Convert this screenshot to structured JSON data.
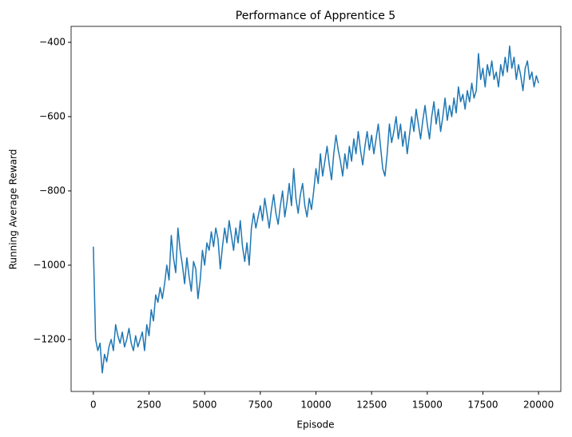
{
  "chart_data": {
    "type": "line",
    "title": "Performance of Apprentice 5",
    "x_label": "Episode",
    "y_label": "Running Average Reward",
    "color": "#1f77b4",
    "x": [
      0,
      100,
      200,
      300,
      400,
      500,
      600,
      700,
      800,
      900,
      1000,
      1100,
      1200,
      1300,
      1400,
      1500,
      1600,
      1700,
      1800,
      1900,
      2000,
      2100,
      2200,
      2300,
      2400,
      2500,
      2600,
      2700,
      2800,
      2900,
      3000,
      3100,
      3200,
      3300,
      3400,
      3500,
      3600,
      3700,
      3800,
      3900,
      4000,
      4100,
      4200,
      4300,
      4400,
      4500,
      4600,
      4700,
      4800,
      4900,
      5000,
      5100,
      5200,
      5300,
      5400,
      5500,
      5600,
      5700,
      5800,
      5900,
      6000,
      6100,
      6200,
      6300,
      6400,
      6500,
      6600,
      6700,
      6800,
      6900,
      7000,
      7100,
      7200,
      7300,
      7400,
      7500,
      7600,
      7700,
      7800,
      7900,
      8000,
      8100,
      8200,
      8300,
      8400,
      8500,
      8600,
      8700,
      8800,
      8900,
      9000,
      9100,
      9200,
      9300,
      9400,
      9500,
      9600,
      9700,
      9800,
      9900,
      10000,
      10100,
      10200,
      10300,
      10400,
      10500,
      10600,
      10700,
      10800,
      10900,
      11000,
      11100,
      11200,
      11300,
      11400,
      11500,
      11600,
      11700,
      11800,
      11900,
      12000,
      12100,
      12200,
      12300,
      12400,
      12500,
      12600,
      12700,
      12800,
      12900,
      13000,
      13100,
      13200,
      13300,
      13400,
      13500,
      13600,
      13700,
      13800,
      13900,
      14000,
      14100,
      14200,
      14300,
      14400,
      14500,
      14600,
      14700,
      14800,
      14900,
      15000,
      15100,
      15200,
      15300,
      15400,
      15500,
      15600,
      15700,
      15800,
      15900,
      16000,
      16100,
      16200,
      16300,
      16400,
      16500,
      16600,
      16700,
      16800,
      16900,
      17000,
      17100,
      17200,
      17300,
      17400,
      17500,
      17600,
      17700,
      17800,
      17900,
      18000,
      18100,
      18200,
      18300,
      18400,
      18500,
      18600,
      18700,
      18800,
      18900,
      19000,
      19100,
      19200,
      19300,
      19400,
      19500,
      19600,
      19700,
      19800,
      19900,
      20000
    ],
    "values": [
      -950,
      -1200,
      -1230,
      -1210,
      -1290,
      -1240,
      -1260,
      -1220,
      -1200,
      -1230,
      -1160,
      -1190,
      -1210,
      -1180,
      -1220,
      -1200,
      -1170,
      -1210,
      -1230,
      -1190,
      -1220,
      -1200,
      -1180,
      -1230,
      -1160,
      -1190,
      -1120,
      -1150,
      -1080,
      -1100,
      -1060,
      -1090,
      -1050,
      -1000,
      -1040,
      -920,
      -980,
      -1020,
      -900,
      -960,
      -1000,
      -1050,
      -980,
      -1030,
      -1070,
      -990,
      -1010,
      -1090,
      -1040,
      -960,
      -1000,
      -940,
      -960,
      -910,
      -950,
      -900,
      -930,
      -1010,
      -950,
      -900,
      -940,
      -880,
      -920,
      -960,
      -900,
      -940,
      -880,
      -950,
      -990,
      -940,
      -1000,
      -900,
      -860,
      -900,
      -870,
      -840,
      -880,
      -820,
      -860,
      -900,
      -850,
      -810,
      -860,
      -890,
      -840,
      -800,
      -870,
      -830,
      -780,
      -840,
      -740,
      -820,
      -860,
      -810,
      -780,
      -840,
      -870,
      -820,
      -850,
      -800,
      -740,
      -780,
      -700,
      -760,
      -720,
      -680,
      -730,
      -770,
      -700,
      -650,
      -690,
      -720,
      -760,
      -700,
      -740,
      -680,
      -720,
      -660,
      -700,
      -640,
      -690,
      -730,
      -680,
      -640,
      -690,
      -650,
      -700,
      -660,
      -620,
      -680,
      -740,
      -760,
      -700,
      -620,
      -670,
      -640,
      -600,
      -660,
      -620,
      -680,
      -640,
      -700,
      -650,
      -600,
      -640,
      -580,
      -620,
      -660,
      -610,
      -570,
      -620,
      -660,
      -600,
      -560,
      -620,
      -580,
      -640,
      -600,
      -550,
      -610,
      -570,
      -600,
      -550,
      -590,
      -520,
      -560,
      -540,
      -580,
      -530,
      -560,
      -510,
      -550,
      -530,
      -430,
      -500,
      -470,
      -520,
      -460,
      -490,
      -450,
      -500,
      -480,
      -520,
      -460,
      -490,
      -440,
      -480,
      -410,
      -470,
      -440,
      -500,
      -460,
      -490,
      -530,
      -470,
      -450,
      -500,
      -480,
      -520,
      -490,
      -510
    ],
    "xlim": [
      -1000,
      21000
    ],
    "xticks": [
      0,
      2500,
      5000,
      7500,
      10000,
      12500,
      15000,
      17500,
      20000
    ],
    "ylim": [
      -1340,
      -357
    ],
    "yticks": [
      {
        "value": -1200,
        "label": "−1200"
      },
      {
        "value": -1000,
        "label": "−1000"
      },
      {
        "value": -800,
        "label": "−800"
      },
      {
        "value": -600,
        "label": "−600"
      },
      {
        "value": -400,
        "label": "−400"
      }
    ],
    "grid": false
  }
}
